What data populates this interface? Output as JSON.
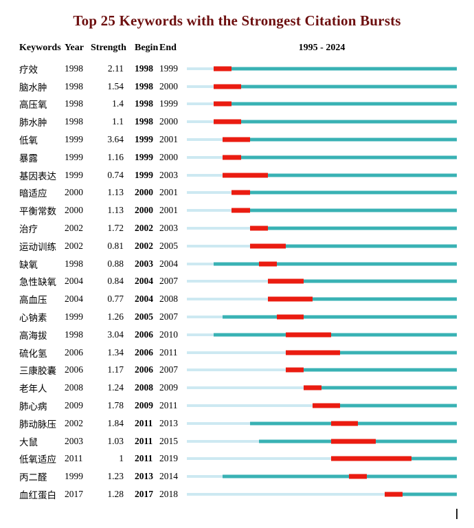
{
  "title": "Top 25 Keywords with the Strongest Citation Bursts",
  "columns": {
    "keywords": "Keywords",
    "year": "Year",
    "strength": "Strength",
    "begin": "Begin",
    "end": "End",
    "range": "1995 - 2024"
  },
  "colors": {
    "title": "#6d0f0f",
    "pre_segment": "#cde9f2",
    "active_segment": "#39b2b4",
    "burst_segment": "#ea1c11"
  },
  "chart_data": {
    "type": "table",
    "title": "Top 25 Keywords with the Strongest Citation Bursts",
    "timeline_label": "1995 - 2024",
    "timeline_range": [
      1995,
      2024
    ],
    "legend": {
      "pre_segment": "years before first occurrence",
      "active_segment": "years keyword active",
      "burst_segment": "citation burst period"
    },
    "rows": [
      {
        "keyword": "疗效",
        "year": 1998,
        "strength": "2.11",
        "begin": 1998,
        "end": 1999
      },
      {
        "keyword": "脑水肿",
        "year": 1998,
        "strength": "1.54",
        "begin": 1998,
        "end": 2000
      },
      {
        "keyword": "高压氧",
        "year": 1998,
        "strength": "1.4",
        "begin": 1998,
        "end": 1999
      },
      {
        "keyword": "肺水肿",
        "year": 1998,
        "strength": "1.1",
        "begin": 1998,
        "end": 2000
      },
      {
        "keyword": "低氧",
        "year": 1999,
        "strength": "3.64",
        "begin": 1999,
        "end": 2001
      },
      {
        "keyword": "暴露",
        "year": 1999,
        "strength": "1.16",
        "begin": 1999,
        "end": 2000
      },
      {
        "keyword": "基因表达",
        "year": 1999,
        "strength": "0.74",
        "begin": 1999,
        "end": 2003
      },
      {
        "keyword": "暗适应",
        "year": 2000,
        "strength": "1.13",
        "begin": 2000,
        "end": 2001
      },
      {
        "keyword": "平衡常数",
        "year": 2000,
        "strength": "1.13",
        "begin": 2000,
        "end": 2001
      },
      {
        "keyword": "治疗",
        "year": 2002,
        "strength": "1.72",
        "begin": 2002,
        "end": 2003
      },
      {
        "keyword": "运动训练",
        "year": 2002,
        "strength": "0.81",
        "begin": 2002,
        "end": 2005
      },
      {
        "keyword": "缺氧",
        "year": 1998,
        "strength": "0.88",
        "begin": 2003,
        "end": 2004
      },
      {
        "keyword": "急性缺氧",
        "year": 2004,
        "strength": "0.84",
        "begin": 2004,
        "end": 2007
      },
      {
        "keyword": "高血压",
        "year": 2004,
        "strength": "0.77",
        "begin": 2004,
        "end": 2008
      },
      {
        "keyword": "心钠素",
        "year": 1999,
        "strength": "1.26",
        "begin": 2005,
        "end": 2007
      },
      {
        "keyword": "高海拔",
        "year": 1998,
        "strength": "3.04",
        "begin": 2006,
        "end": 2010
      },
      {
        "keyword": "硫化氢",
        "year": 2006,
        "strength": "1.34",
        "begin": 2006,
        "end": 2011
      },
      {
        "keyword": "三康胶囊",
        "year": 2006,
        "strength": "1.17",
        "begin": 2006,
        "end": 2007
      },
      {
        "keyword": "老年人",
        "year": 2008,
        "strength": "1.24",
        "begin": 2008,
        "end": 2009
      },
      {
        "keyword": "肺心病",
        "year": 2009,
        "strength": "1.78",
        "begin": 2009,
        "end": 2011
      },
      {
        "keyword": "肺动脉压",
        "year": 2002,
        "strength": "1.84",
        "begin": 2011,
        "end": 2013
      },
      {
        "keyword": "大鼠",
        "year": 2003,
        "strength": "1.03",
        "begin": 2011,
        "end": 2015
      },
      {
        "keyword": "低氧适应",
        "year": 2011,
        "strength": "1",
        "begin": 2011,
        "end": 2019
      },
      {
        "keyword": "丙二醛",
        "year": 1999,
        "strength": "1.23",
        "begin": 2013,
        "end": 2014
      },
      {
        "keyword": "血红蛋白",
        "year": 2017,
        "strength": "1.28",
        "begin": 2017,
        "end": 2018
      }
    ]
  }
}
